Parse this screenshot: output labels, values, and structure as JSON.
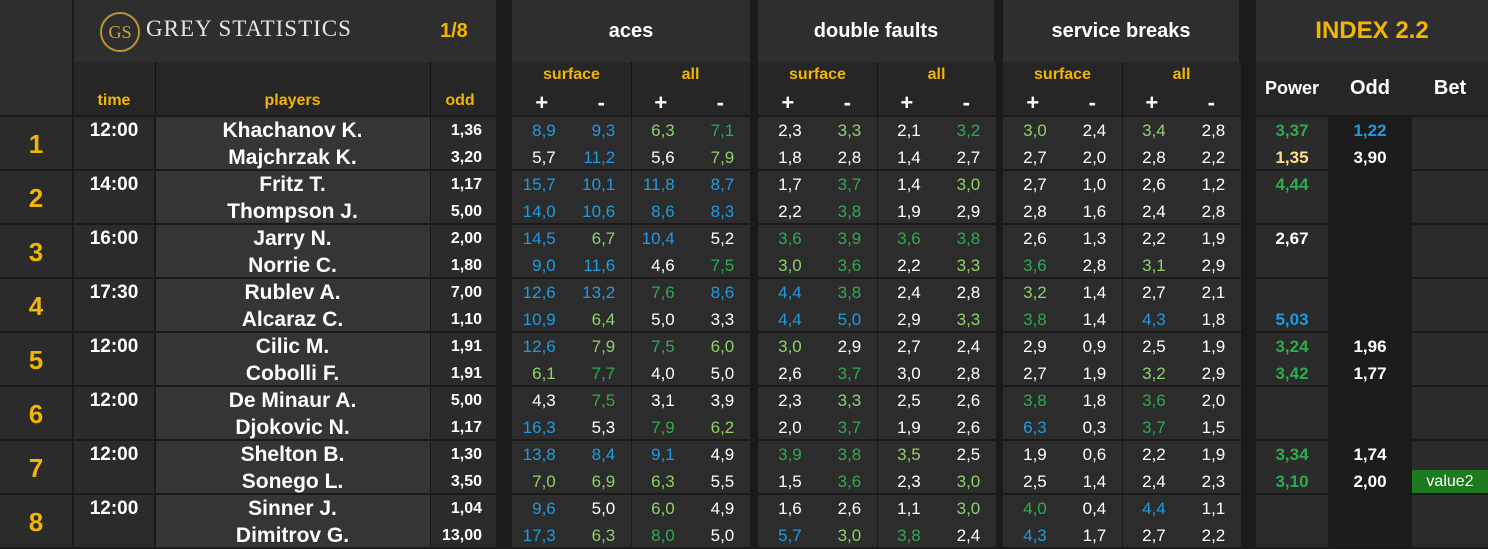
{
  "header": {
    "logo_mark": "GS",
    "brand": "GREY STATISTICS",
    "round": "1/8",
    "groups": {
      "aces": "aces",
      "double_faults": "double faults",
      "service_breaks": "service breaks"
    },
    "index_title": "INDEX 2.2",
    "sub": {
      "surface": "surface",
      "all": "all",
      "plus": "+",
      "minus": "-"
    },
    "cols": {
      "time": "time",
      "players": "players",
      "odd": "odd",
      "power": "Power",
      "odd2": "Odd",
      "bet": "Bet"
    }
  },
  "colors": {
    "blue": "#1e9be0",
    "green": "#2eab4f",
    "lightgreen": "#8fd16a",
    "white": "#ffffff",
    "yellow": "#f2b600",
    "lightyellow": "#ffe08a",
    "value_bg": "#1e7a1e"
  },
  "matches": [
    {
      "no": "1",
      "time": "12:00",
      "players": [
        {
          "name": "Khachanov K.",
          "odd": "1,36",
          "stats": [
            [
              "8,9",
              "blue"
            ],
            [
              "9,3",
              "blue"
            ],
            [
              "6,3",
              "lightgreen"
            ],
            [
              "7,1",
              "green"
            ],
            [
              "2,3",
              "white"
            ],
            [
              "3,3",
              "lightgreen"
            ],
            [
              "2,1",
              "white"
            ],
            [
              "3,2",
              "green"
            ],
            [
              "3,0",
              "lightgreen"
            ],
            [
              "2,4",
              "white"
            ],
            [
              "3,4",
              "lightgreen"
            ],
            [
              "2,8",
              "white"
            ]
          ],
          "power": [
            "3,37",
            "green"
          ],
          "odd2": [
            "1,22",
            "blue"
          ],
          "bet": ""
        },
        {
          "name": "Majchrzak K.",
          "odd": "3,20",
          "stats": [
            [
              "5,7",
              "white"
            ],
            [
              "11,2",
              "blue"
            ],
            [
              "5,6",
              "white"
            ],
            [
              "7,9",
              "lightgreen"
            ],
            [
              "1,8",
              "white"
            ],
            [
              "2,8",
              "white"
            ],
            [
              "1,4",
              "white"
            ],
            [
              "2,7",
              "white"
            ],
            [
              "2,7",
              "white"
            ],
            [
              "2,0",
              "white"
            ],
            [
              "2,8",
              "white"
            ],
            [
              "2,2",
              "white"
            ]
          ],
          "power": [
            "1,35",
            "lightyellow"
          ],
          "odd2": [
            "3,90",
            "white"
          ],
          "bet": ""
        }
      ]
    },
    {
      "no": "2",
      "time": "14:00",
      "players": [
        {
          "name": "Fritz T.",
          "odd": "1,17",
          "stats": [
            [
              "15,7",
              "blue"
            ],
            [
              "10,1",
              "blue"
            ],
            [
              "11,8",
              "blue"
            ],
            [
              "8,7",
              "blue"
            ],
            [
              "1,7",
              "white"
            ],
            [
              "3,7",
              "green"
            ],
            [
              "1,4",
              "white"
            ],
            [
              "3,0",
              "lightgreen"
            ],
            [
              "2,7",
              "white"
            ],
            [
              "1,0",
              "white"
            ],
            [
              "2,6",
              "white"
            ],
            [
              "1,2",
              "white"
            ]
          ],
          "power": [
            "4,44",
            "green"
          ],
          "odd2": [
            "",
            ""
          ],
          "bet": ""
        },
        {
          "name": "Thompson J.",
          "odd": "5,00",
          "stats": [
            [
              "14,0",
              "blue"
            ],
            [
              "10,6",
              "blue"
            ],
            [
              "8,6",
              "blue"
            ],
            [
              "8,3",
              "blue"
            ],
            [
              "2,2",
              "white"
            ],
            [
              "3,8",
              "green"
            ],
            [
              "1,9",
              "white"
            ],
            [
              "2,9",
              "white"
            ],
            [
              "2,8",
              "white"
            ],
            [
              "1,6",
              "white"
            ],
            [
              "2,4",
              "white"
            ],
            [
              "2,8",
              "white"
            ]
          ],
          "power": [
            "",
            ""
          ],
          "odd2": [
            "",
            ""
          ],
          "bet": ""
        }
      ]
    },
    {
      "no": "3",
      "time": "16:00",
      "players": [
        {
          "name": "Jarry N.",
          "odd": "2,00",
          "stats": [
            [
              "14,5",
              "blue"
            ],
            [
              "6,7",
              "lightgreen"
            ],
            [
              "10,4",
              "blue"
            ],
            [
              "5,2",
              "white"
            ],
            [
              "3,6",
              "green"
            ],
            [
              "3,9",
              "green"
            ],
            [
              "3,6",
              "green"
            ],
            [
              "3,8",
              "green"
            ],
            [
              "2,6",
              "white"
            ],
            [
              "1,3",
              "white"
            ],
            [
              "2,2",
              "white"
            ],
            [
              "1,9",
              "white"
            ]
          ],
          "power": [
            "2,67",
            "white"
          ],
          "odd2": [
            "",
            ""
          ],
          "bet": ""
        },
        {
          "name": "Norrie C.",
          "odd": "1,80",
          "stats": [
            [
              "9,0",
              "blue"
            ],
            [
              "11,6",
              "blue"
            ],
            [
              "4,6",
              "white"
            ],
            [
              "7,5",
              "green"
            ],
            [
              "3,0",
              "lightgreen"
            ],
            [
              "3,6",
              "green"
            ],
            [
              "2,2",
              "white"
            ],
            [
              "3,3",
              "lightgreen"
            ],
            [
              "3,6",
              "green"
            ],
            [
              "2,8",
              "white"
            ],
            [
              "3,1",
              "lightgreen"
            ],
            [
              "2,9",
              "white"
            ]
          ],
          "power": [
            "",
            ""
          ],
          "odd2": [
            "",
            ""
          ],
          "bet": ""
        }
      ]
    },
    {
      "no": "4",
      "time": "17:30",
      "players": [
        {
          "name": "Rublev A.",
          "odd": "7,00",
          "stats": [
            [
              "12,6",
              "blue"
            ],
            [
              "13,2",
              "blue"
            ],
            [
              "7,6",
              "green"
            ],
            [
              "8,6",
              "blue"
            ],
            [
              "4,4",
              "blue"
            ],
            [
              "3,8",
              "green"
            ],
            [
              "2,4",
              "white"
            ],
            [
              "2,8",
              "white"
            ],
            [
              "3,2",
              "lightgreen"
            ],
            [
              "1,4",
              "white"
            ],
            [
              "2,7",
              "white"
            ],
            [
              "2,1",
              "white"
            ]
          ],
          "power": [
            "",
            ""
          ],
          "odd2": [
            "",
            ""
          ],
          "bet": ""
        },
        {
          "name": "Alcaraz C.",
          "odd": "1,10",
          "stats": [
            [
              "10,9",
              "blue"
            ],
            [
              "6,4",
              "lightgreen"
            ],
            [
              "5,0",
              "white"
            ],
            [
              "3,3",
              "white"
            ],
            [
              "4,4",
              "blue"
            ],
            [
              "5,0",
              "blue"
            ],
            [
              "2,9",
              "white"
            ],
            [
              "3,3",
              "lightgreen"
            ],
            [
              "3,8",
              "green"
            ],
            [
              "1,4",
              "white"
            ],
            [
              "4,3",
              "blue"
            ],
            [
              "1,8",
              "white"
            ]
          ],
          "power": [
            "5,03",
            "blue"
          ],
          "odd2": [
            "",
            ""
          ],
          "bet": ""
        }
      ]
    },
    {
      "no": "5",
      "time": "12:00",
      "players": [
        {
          "name": "Cilic M.",
          "odd": "1,91",
          "stats": [
            [
              "12,6",
              "blue"
            ],
            [
              "7,9",
              "lightgreen"
            ],
            [
              "7,5",
              "green"
            ],
            [
              "6,0",
              "lightgreen"
            ],
            [
              "3,0",
              "lightgreen"
            ],
            [
              "2,9",
              "white"
            ],
            [
              "2,7",
              "white"
            ],
            [
              "2,4",
              "white"
            ],
            [
              "2,9",
              "white"
            ],
            [
              "0,9",
              "white"
            ],
            [
              "2,5",
              "white"
            ],
            [
              "1,9",
              "white"
            ]
          ],
          "power": [
            "3,24",
            "green"
          ],
          "odd2": [
            "1,96",
            "white"
          ],
          "bet": ""
        },
        {
          "name": "Cobolli F.",
          "odd": "1,91",
          "stats": [
            [
              "6,1",
              "lightgreen"
            ],
            [
              "7,7",
              "green"
            ],
            [
              "4,0",
              "white"
            ],
            [
              "5,0",
              "white"
            ],
            [
              "2,6",
              "white"
            ],
            [
              "3,7",
              "green"
            ],
            [
              "3,0",
              "white"
            ],
            [
              "2,8",
              "white"
            ],
            [
              "2,7",
              "white"
            ],
            [
              "1,9",
              "white"
            ],
            [
              "3,2",
              "lightgreen"
            ],
            [
              "2,9",
              "white"
            ]
          ],
          "power": [
            "3,42",
            "green"
          ],
          "odd2": [
            "1,77",
            "white"
          ],
          "bet": ""
        }
      ]
    },
    {
      "no": "6",
      "time": "12:00",
      "players": [
        {
          "name": "De Minaur A.",
          "odd": "5,00",
          "stats": [
            [
              "4,3",
              "white"
            ],
            [
              "7,5",
              "green"
            ],
            [
              "3,1",
              "white"
            ],
            [
              "3,9",
              "white"
            ],
            [
              "2,3",
              "white"
            ],
            [
              "3,3",
              "lightgreen"
            ],
            [
              "2,5",
              "white"
            ],
            [
              "2,6",
              "white"
            ],
            [
              "3,8",
              "green"
            ],
            [
              "1,8",
              "white"
            ],
            [
              "3,6",
              "green"
            ],
            [
              "2,0",
              "white"
            ]
          ],
          "power": [
            "",
            ""
          ],
          "odd2": [
            "",
            ""
          ],
          "bet": ""
        },
        {
          "name": "Djokovic N.",
          "odd": "1,17",
          "stats": [
            [
              "16,3",
              "blue"
            ],
            [
              "5,3",
              "white"
            ],
            [
              "7,9",
              "green"
            ],
            [
              "6,2",
              "lightgreen"
            ],
            [
              "2,0",
              "white"
            ],
            [
              "3,7",
              "green"
            ],
            [
              "1,9",
              "white"
            ],
            [
              "2,6",
              "white"
            ],
            [
              "6,3",
              "blue"
            ],
            [
              "0,3",
              "white"
            ],
            [
              "3,7",
              "green"
            ],
            [
              "1,5",
              "white"
            ]
          ],
          "power": [
            "",
            ""
          ],
          "odd2": [
            "",
            ""
          ],
          "bet": ""
        }
      ]
    },
    {
      "no": "7",
      "time": "12:00",
      "players": [
        {
          "name": "Shelton B.",
          "odd": "1,30",
          "stats": [
            [
              "13,8",
              "blue"
            ],
            [
              "8,4",
              "blue"
            ],
            [
              "9,1",
              "blue"
            ],
            [
              "4,9",
              "white"
            ],
            [
              "3,9",
              "green"
            ],
            [
              "3,8",
              "green"
            ],
            [
              "3,5",
              "lightgreen"
            ],
            [
              "2,5",
              "white"
            ],
            [
              "1,9",
              "white"
            ],
            [
              "0,6",
              "white"
            ],
            [
              "2,2",
              "white"
            ],
            [
              "1,9",
              "white"
            ]
          ],
          "power": [
            "3,34",
            "green"
          ],
          "odd2": [
            "1,74",
            "white"
          ],
          "bet": ""
        },
        {
          "name": "Sonego L.",
          "odd": "3,50",
          "stats": [
            [
              "7,0",
              "lightgreen"
            ],
            [
              "6,9",
              "lightgreen"
            ],
            [
              "6,3",
              "lightgreen"
            ],
            [
              "5,5",
              "white"
            ],
            [
              "1,5",
              "white"
            ],
            [
              "3,6",
              "green"
            ],
            [
              "2,3",
              "white"
            ],
            [
              "3,0",
              "lightgreen"
            ],
            [
              "2,5",
              "white"
            ],
            [
              "1,4",
              "white"
            ],
            [
              "2,4",
              "white"
            ],
            [
              "2,3",
              "white"
            ]
          ],
          "power": [
            "3,10",
            "green"
          ],
          "odd2": [
            "2,00",
            "white"
          ],
          "bet": "value2"
        }
      ]
    },
    {
      "no": "8",
      "time": "12:00",
      "players": [
        {
          "name": "Sinner J.",
          "odd": "1,04",
          "stats": [
            [
              "9,6",
              "blue"
            ],
            [
              "5,0",
              "white"
            ],
            [
              "6,0",
              "lightgreen"
            ],
            [
              "4,9",
              "white"
            ],
            [
              "1,6",
              "white"
            ],
            [
              "2,6",
              "white"
            ],
            [
              "1,1",
              "white"
            ],
            [
              "3,0",
              "lightgreen"
            ],
            [
              "4,0",
              "green"
            ],
            [
              "0,4",
              "white"
            ],
            [
              "4,4",
              "blue"
            ],
            [
              "1,1",
              "white"
            ]
          ],
          "power": [
            "",
            ""
          ],
          "odd2": [
            "",
            ""
          ],
          "bet": ""
        },
        {
          "name": "Dimitrov G.",
          "odd": "13,00",
          "stats": [
            [
              "17,3",
              "blue"
            ],
            [
              "6,3",
              "lightgreen"
            ],
            [
              "8,0",
              "green"
            ],
            [
              "5,0",
              "white"
            ],
            [
              "5,7",
              "blue"
            ],
            [
              "3,0",
              "lightgreen"
            ],
            [
              "3,8",
              "green"
            ],
            [
              "2,4",
              "white"
            ],
            [
              "4,3",
              "blue"
            ],
            [
              "1,7",
              "white"
            ],
            [
              "2,7",
              "white"
            ],
            [
              "2,2",
              "white"
            ]
          ],
          "power": [
            "",
            ""
          ],
          "odd2": [
            "",
            ""
          ],
          "bet": ""
        }
      ]
    }
  ]
}
